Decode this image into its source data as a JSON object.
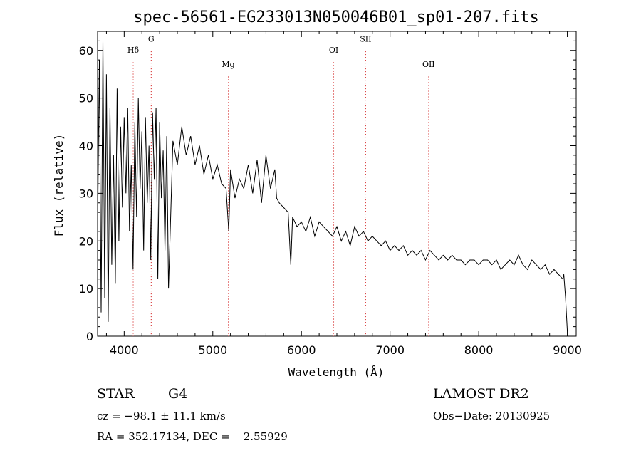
{
  "chart_data": {
    "type": "line",
    "title": "spec-56561-EG233013N050046B01_sp01-207.fits",
    "xlabel": "Wavelength (Å)",
    "ylabel": "Flux (relative)",
    "xlim": [
      3700,
      9100
    ],
    "ylim": [
      0,
      64
    ],
    "xticks": [
      4000,
      5000,
      6000,
      7000,
      8000,
      9000
    ],
    "yticks": [
      0,
      10,
      20,
      30,
      40,
      50,
      60
    ],
    "grid": false,
    "line_color": "#000000",
    "marker_color": "#cc0000",
    "line_markers": [
      {
        "label": "Hδ",
        "x": 4102,
        "label_y": 59.5
      },
      {
        "label": "G",
        "x": 4305,
        "label_y": 61.8
      },
      {
        "label": "Mg",
        "x": 5175,
        "label_y": 56.5
      },
      {
        "label": "OI",
        "x": 6364,
        "label_y": 59.5
      },
      {
        "label": "SII",
        "x": 6724,
        "label_y": 61.8
      },
      {
        "label": "OII",
        "x": 7435,
        "label_y": 56.5
      }
    ],
    "series": [
      {
        "x": [
          3700,
          3720,
          3740,
          3760,
          3780,
          3800,
          3820,
          3840,
          3860,
          3880,
          3900,
          3920,
          3940,
          3960,
          3980,
          4000,
          4020,
          4040,
          4060,
          4080,
          4100,
          4120,
          4140,
          4160,
          4180,
          4200,
          4220,
          4240,
          4260,
          4280,
          4300,
          4320,
          4340,
          4360,
          4380,
          4400,
          4420,
          4440,
          4460,
          4480,
          4500,
          4550,
          4600,
          4650,
          4700,
          4750,
          4800,
          4850,
          4900,
          4950,
          5000,
          5050,
          5100,
          5150,
          5180,
          5200,
          5250,
          5300,
          5350,
          5400,
          5450,
          5500,
          5550,
          5600,
          5650,
          5700,
          5720,
          5750,
          5800,
          5850,
          5880,
          5900,
          5950,
          6000,
          6050,
          6100,
          6150,
          6200,
          6250,
          6300,
          6350,
          6400,
          6450,
          6500,
          6550,
          6600,
          6650,
          6700,
          6750,
          6800,
          6850,
          6900,
          6950,
          7000,
          7050,
          7100,
          7150,
          7200,
          7250,
          7300,
          7350,
          7400,
          7450,
          7500,
          7550,
          7600,
          7650,
          7700,
          7750,
          7800,
          7850,
          7900,
          7950,
          8000,
          8050,
          8100,
          8150,
          8200,
          8250,
          8300,
          8350,
          8400,
          8450,
          8500,
          8550,
          8600,
          8650,
          8700,
          8750,
          8800,
          8850,
          8900,
          8950,
          8960,
          8980,
          9000
        ],
        "y": [
          22,
          58,
          5,
          62,
          8,
          55,
          3,
          48,
          15,
          38,
          11,
          52,
          20,
          44,
          27,
          46,
          30,
          48,
          22,
          36,
          14,
          45,
          25,
          50,
          31,
          43,
          18,
          46,
          28,
          40,
          16,
          47,
          33,
          48,
          12,
          45,
          29,
          39,
          18,
          42,
          10,
          41,
          36,
          44,
          38,
          42,
          36,
          40,
          34,
          38,
          33,
          36,
          32,
          31,
          22,
          35,
          29,
          33,
          31,
          36,
          30,
          37,
          28,
          38,
          31,
          35,
          29,
          28,
          27,
          26,
          15,
          25,
          23,
          24,
          22,
          25,
          21,
          24,
          23,
          22,
          21,
          23,
          20,
          22,
          19,
          23,
          21,
          22,
          20,
          21,
          20,
          19,
          20,
          18,
          19,
          18,
          19,
          17,
          18,
          17,
          18,
          16,
          18,
          17,
          16,
          17,
          16,
          17,
          16,
          16,
          15,
          16,
          16,
          15,
          16,
          16,
          15,
          16,
          14,
          15,
          16,
          15,
          17,
          15,
          14,
          16,
          15,
          14,
          15,
          13,
          14,
          13,
          12,
          13,
          8,
          1
        ]
      }
    ]
  },
  "info": {
    "object_class": "STAR",
    "subclass": "G4",
    "survey": "LAMOST DR2",
    "cz": "cz = −98.1 ± 11.1 km/s",
    "obs_date": "Obs−Date: 20130925",
    "coords": "RA = 352.17134, DEC =    2.55929"
  }
}
